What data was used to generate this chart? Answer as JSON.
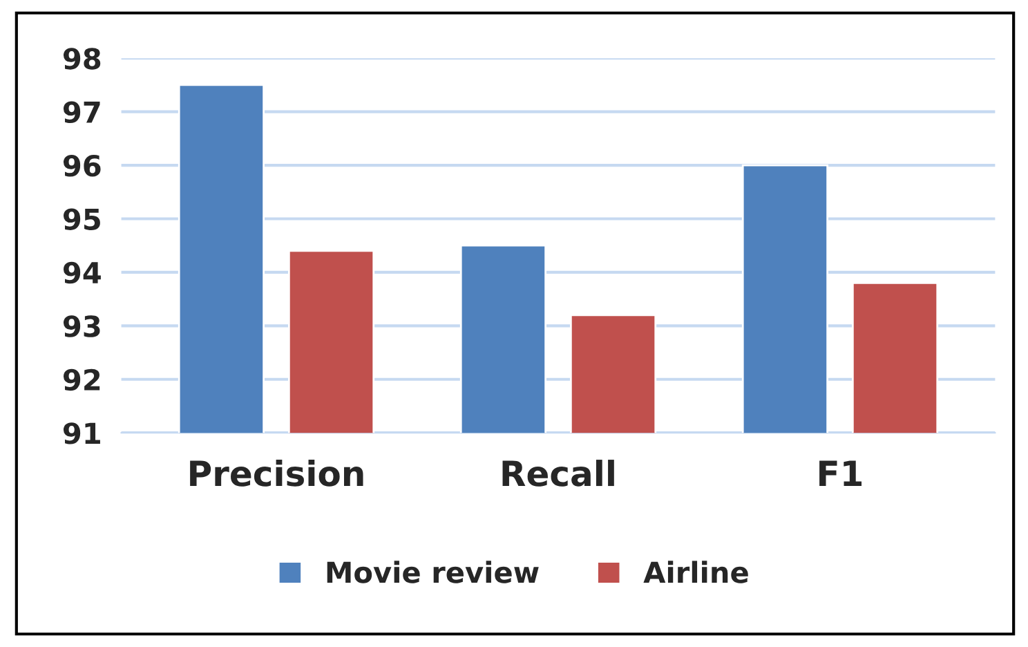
{
  "chart_data": {
    "type": "bar",
    "categories": [
      "Precision",
      "Recall",
      "F1"
    ],
    "series": [
      {
        "name": "Movie review",
        "color": "#4f81bd",
        "values": [
          97.5,
          94.5,
          96.0
        ]
      },
      {
        "name": "Airline",
        "color": "#c0504d",
        "values": [
          94.4,
          93.2,
          93.8
        ]
      }
    ],
    "ylim": [
      91,
      98
    ],
    "yticks": [
      91,
      92,
      93,
      94,
      95,
      96,
      97,
      98
    ],
    "grid": "y",
    "legend": "bottom"
  }
}
